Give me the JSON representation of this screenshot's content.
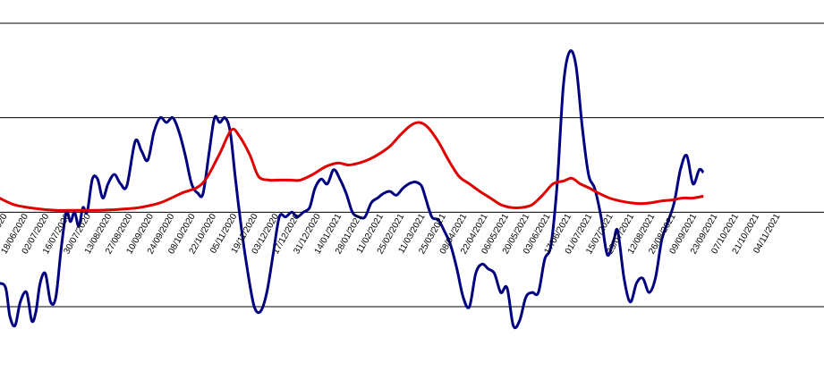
{
  "chart_data": {
    "type": "line",
    "title": "",
    "xlabel": "",
    "ylabel": "",
    "grid": true,
    "legend": "none",
    "x_tick_labels": [
      "06/2020",
      "18/06/2020",
      "02/07/2020",
      "16/07/2020",
      "30/07/2020",
      "13/08/2020",
      "27/08/2020",
      "10/09/2020",
      "24/09/2020",
      "08/10/2020",
      "22/10/2020",
      "05/11/2020",
      "19/11/2020",
      "03/12/2020",
      "17/12/2020",
      "31/12/2020",
      "14/01/2021",
      "28/01/2021",
      "11/02/2021",
      "25/02/2021",
      "11/03/2021",
      "25/03/2021",
      "08/04/2021",
      "22/04/2021",
      "06/05/2021",
      "20/05/2021",
      "03/06/2021",
      "17/06/2021",
      "01/07/2021",
      "15/07/2021",
      "29/07/2021",
      "12/08/2021",
      "26/08/2021",
      "09/09/2021",
      "23/09/2021",
      "07/10/2021",
      "21/10/2021",
      "04/11/2021"
    ],
    "x_index_range": [
      0,
      37.5
    ],
    "ylim": [
      -1.5,
      2.0
    ],
    "gridlines_y": [
      -1,
      0,
      1,
      2
    ],
    "series": [
      {
        "color": "#000080",
        "points": [
          [
            -0.2,
            -0.75
          ],
          [
            0.1,
            -0.8
          ],
          [
            0.3,
            -1.1
          ],
          [
            0.55,
            -1.2
          ],
          [
            0.8,
            -0.95
          ],
          [
            1.1,
            -0.85
          ],
          [
            1.35,
            -1.15
          ],
          [
            1.55,
            -1.05
          ],
          [
            1.75,
            -0.75
          ],
          [
            2.0,
            -0.65
          ],
          [
            2.25,
            -0.95
          ],
          [
            2.5,
            -0.9
          ],
          [
            2.75,
            -0.4
          ],
          [
            3.0,
            0.0
          ],
          [
            3.2,
            -0.1
          ],
          [
            3.4,
            0.0
          ],
          [
            3.6,
            -0.15
          ],
          [
            3.8,
            0.05
          ],
          [
            4.0,
            0.0
          ],
          [
            4.25,
            0.35
          ],
          [
            4.5,
            0.35
          ],
          [
            4.75,
            0.15
          ],
          [
            5.0,
            0.3
          ],
          [
            5.3,
            0.4
          ],
          [
            5.6,
            0.3
          ],
          [
            5.9,
            0.28
          ],
          [
            6.3,
            0.75
          ],
          [
            6.6,
            0.65
          ],
          [
            6.9,
            0.55
          ],
          [
            7.2,
            0.85
          ],
          [
            7.5,
            1.0
          ],
          [
            7.8,
            0.95
          ],
          [
            8.1,
            1.0
          ],
          [
            8.4,
            0.85
          ],
          [
            8.7,
            0.6
          ],
          [
            9.0,
            0.3
          ],
          [
            9.3,
            0.2
          ],
          [
            9.55,
            0.2
          ],
          [
            9.85,
            0.65
          ],
          [
            10.1,
            1.0
          ],
          [
            10.35,
            0.95
          ],
          [
            10.6,
            1.0
          ],
          [
            10.85,
            0.85
          ],
          [
            11.1,
            0.35
          ],
          [
            11.4,
            -0.2
          ],
          [
            11.7,
            -0.65
          ],
          [
            12.0,
            -1.0
          ],
          [
            12.3,
            -1.05
          ],
          [
            12.6,
            -0.85
          ],
          [
            12.9,
            -0.45
          ],
          [
            13.2,
            -0.05
          ],
          [
            13.5,
            -0.05
          ],
          [
            13.8,
            0.0
          ],
          [
            14.05,
            -0.05
          ],
          [
            14.35,
            0.0
          ],
          [
            14.65,
            0.05
          ],
          [
            14.9,
            0.25
          ],
          [
            15.2,
            0.35
          ],
          [
            15.5,
            0.3
          ],
          [
            15.8,
            0.45
          ],
          [
            16.1,
            0.35
          ],
          [
            16.4,
            0.2
          ],
          [
            16.7,
            0.0
          ],
          [
            17.0,
            -0.05
          ],
          [
            17.3,
            -0.05
          ],
          [
            17.6,
            0.1
          ],
          [
            17.9,
            0.15
          ],
          [
            18.2,
            0.2
          ],
          [
            18.5,
            0.22
          ],
          [
            18.8,
            0.18
          ],
          [
            19.1,
            0.25
          ],
          [
            19.4,
            0.3
          ],
          [
            19.7,
            0.32
          ],
          [
            20.0,
            0.28
          ],
          [
            20.2,
            0.15
          ],
          [
            20.5,
            -0.05
          ],
          [
            20.8,
            -0.08
          ],
          [
            21.1,
            -0.2
          ],
          [
            21.4,
            -0.35
          ],
          [
            21.7,
            -0.6
          ],
          [
            22.0,
            -0.9
          ],
          [
            22.3,
            -1.0
          ],
          [
            22.6,
            -0.65
          ],
          [
            22.9,
            -0.55
          ],
          [
            23.2,
            -0.6
          ],
          [
            23.5,
            -0.65
          ],
          [
            23.8,
            -0.85
          ],
          [
            24.1,
            -0.8
          ],
          [
            24.4,
            -1.2
          ],
          [
            24.7,
            -1.15
          ],
          [
            25.0,
            -0.9
          ],
          [
            25.3,
            -0.85
          ],
          [
            25.6,
            -0.85
          ],
          [
            25.9,
            -0.5
          ],
          [
            26.2,
            -0.35
          ],
          [
            26.5,
            0.3
          ],
          [
            26.8,
            1.35
          ],
          [
            27.1,
            1.7
          ],
          [
            27.4,
            1.55
          ],
          [
            27.7,
            0.9
          ],
          [
            28.0,
            0.4
          ],
          [
            28.3,
            0.25
          ],
          [
            28.6,
            -0.05
          ],
          [
            28.9,
            -0.45
          ],
          [
            29.2,
            -0.3
          ],
          [
            29.4,
            -0.2
          ],
          [
            29.7,
            -0.7
          ],
          [
            30.0,
            -0.95
          ],
          [
            30.3,
            -0.75
          ],
          [
            30.6,
            -0.7
          ],
          [
            30.9,
            -0.85
          ],
          [
            31.2,
            -0.7
          ],
          [
            31.5,
            -0.3
          ],
          [
            31.8,
            -0.1
          ],
          [
            32.1,
            0.1
          ],
          [
            32.4,
            0.45
          ],
          [
            32.7,
            0.6
          ],
          [
            33.0,
            0.3
          ],
          [
            33.3,
            0.45
          ],
          [
            33.5,
            0.42
          ]
        ]
      },
      {
        "color": "#e00000",
        "points": [
          [
            -0.2,
            0.15
          ],
          [
            0.5,
            0.08
          ],
          [
            1.5,
            0.04
          ],
          [
            2.5,
            0.02
          ],
          [
            3.5,
            0.02
          ],
          [
            4.5,
            0.02
          ],
          [
            5.5,
            0.03
          ],
          [
            6.5,
            0.05
          ],
          [
            7.5,
            0.1
          ],
          [
            8.5,
            0.2
          ],
          [
            9.5,
            0.3
          ],
          [
            10.3,
            0.6
          ],
          [
            10.9,
            0.87
          ],
          [
            11.3,
            0.8
          ],
          [
            11.8,
            0.6
          ],
          [
            12.2,
            0.38
          ],
          [
            12.7,
            0.34
          ],
          [
            13.2,
            0.34
          ],
          [
            13.7,
            0.34
          ],
          [
            14.2,
            0.34
          ],
          [
            14.8,
            0.4
          ],
          [
            15.4,
            0.48
          ],
          [
            16.0,
            0.52
          ],
          [
            16.5,
            0.5
          ],
          [
            17.0,
            0.52
          ],
          [
            17.5,
            0.56
          ],
          [
            18.0,
            0.62
          ],
          [
            18.5,
            0.7
          ],
          [
            19.0,
            0.82
          ],
          [
            19.5,
            0.92
          ],
          [
            19.9,
            0.95
          ],
          [
            20.3,
            0.9
          ],
          [
            20.8,
            0.75
          ],
          [
            21.3,
            0.55
          ],
          [
            21.8,
            0.38
          ],
          [
            22.3,
            0.3
          ],
          [
            22.8,
            0.22
          ],
          [
            23.3,
            0.15
          ],
          [
            23.8,
            0.08
          ],
          [
            24.3,
            0.05
          ],
          [
            24.8,
            0.05
          ],
          [
            25.3,
            0.08
          ],
          [
            25.8,
            0.18
          ],
          [
            26.3,
            0.3
          ],
          [
            26.8,
            0.33
          ],
          [
            27.2,
            0.36
          ],
          [
            27.6,
            0.3
          ],
          [
            28.0,
            0.26
          ],
          [
            28.5,
            0.2
          ],
          [
            29.0,
            0.15
          ],
          [
            29.5,
            0.12
          ],
          [
            30.0,
            0.1
          ],
          [
            30.5,
            0.09
          ],
          [
            31.0,
            0.1
          ],
          [
            31.5,
            0.12
          ],
          [
            32.0,
            0.13
          ],
          [
            32.5,
            0.15
          ],
          [
            33.0,
            0.15
          ],
          [
            33.5,
            0.17
          ]
        ]
      }
    ]
  }
}
